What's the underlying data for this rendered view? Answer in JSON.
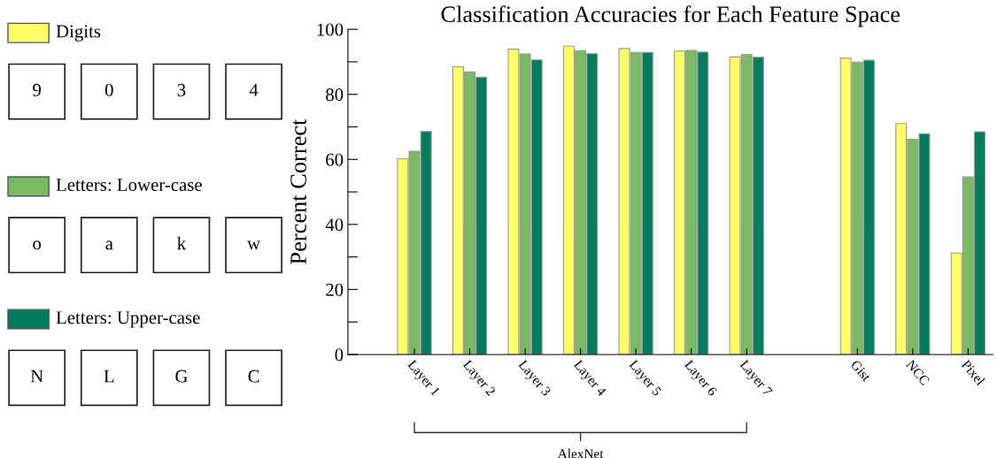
{
  "chart_data": {
    "type": "bar",
    "title": "Classification Accuracies for Each Feature Space",
    "ylabel": "Percent Correct",
    "categories": [
      "Layer 1",
      "Layer 2",
      "Layer 3",
      "Layer 4",
      "Layer 5",
      "Layer 6",
      "Layer 7",
      null,
      "Gist",
      "NCC",
      "Pixel"
    ],
    "series": [
      {
        "name": "Digits",
        "color": "#ffff66",
        "values": [
          60.2,
          88.5,
          93.9,
          94.8,
          94.1,
          93.3,
          91.5,
          null,
          91.1,
          71.0,
          31.2
        ]
      },
      {
        "name": "Letters: Lower-case",
        "color": "#7aba62",
        "values": [
          62.5,
          86.9,
          92.4,
          93.4,
          92.9,
          93.5,
          92.2,
          null,
          89.9,
          66.2,
          54.6
        ]
      },
      {
        "name": "Letters: Upper-case",
        "color": "#007d5f",
        "values": [
          68.6,
          85.3,
          90.6,
          92.5,
          92.9,
          93.0,
          91.4,
          null,
          90.5,
          67.9,
          68.5
        ]
      }
    ],
    "ylim": [
      0,
      100
    ],
    "yticks": [
      0,
      {
        "value": 10,
        "label": null
      },
      20,
      {
        "value": 30,
        "label": null
      },
      40,
      {
        "value": 50,
        "label": null
      },
      60,
      {
        "value": 70,
        "label": null
      },
      80,
      {
        "value": 90,
        "label": null
      },
      100
    ],
    "grid": false,
    "legend": "left",
    "annotations": [
      "AlexNet",
      "9",
      "0",
      "3",
      "4",
      "o",
      "a",
      "k",
      "w",
      "N",
      "L",
      "G",
      "C"
    ]
  }
}
